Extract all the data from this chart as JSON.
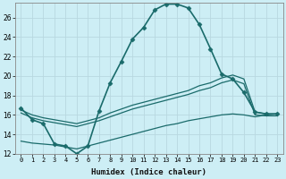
{
  "xlabel": "Humidex (Indice chaleur)",
  "background_color": "#cdeef5",
  "grid_color": "#b8d8e0",
  "line_color": "#1a6b6b",
  "xlim": [
    -0.5,
    23.5
  ],
  "ylim": [
    12,
    27.5
  ],
  "xticks": [
    0,
    1,
    2,
    3,
    4,
    5,
    6,
    7,
    8,
    9,
    10,
    11,
    12,
    13,
    14,
    15,
    16,
    17,
    18,
    19,
    20,
    21,
    22,
    23
  ],
  "yticks": [
    12,
    14,
    16,
    18,
    20,
    22,
    24,
    26
  ],
  "series": [
    {
      "x": [
        0,
        1,
        2,
        3,
        4,
        5,
        6,
        7,
        8,
        9,
        10,
        11,
        12,
        13,
        14,
        15,
        16,
        17,
        18,
        19,
        20,
        21,
        22,
        23
      ],
      "y": [
        16.7,
        15.5,
        15.1,
        13.0,
        12.8,
        12.0,
        12.8,
        16.4,
        19.3,
        21.5,
        23.8,
        25.0,
        26.8,
        27.4,
        27.4,
        27.0,
        25.3,
        22.8,
        20.2,
        19.7,
        18.3,
        16.3,
        16.1,
        16.1
      ],
      "marker": "D",
      "markersize": 2.5,
      "linewidth": 1.2
    },
    {
      "x": [
        0,
        1,
        2,
        3,
        4,
        5,
        6,
        7,
        8,
        9,
        10,
        11,
        12,
        13,
        14,
        15,
        16,
        17,
        18,
        19,
        20,
        21,
        22,
        23
      ],
      "y": [
        16.5,
        16.0,
        15.7,
        15.5,
        15.3,
        15.1,
        15.4,
        15.7,
        16.2,
        16.6,
        17.0,
        17.3,
        17.6,
        17.9,
        18.2,
        18.5,
        19.0,
        19.3,
        19.8,
        20.1,
        19.7,
        16.3,
        16.1,
        16.1
      ],
      "marker": null,
      "markersize": 0,
      "linewidth": 0.9
    },
    {
      "x": [
        0,
        1,
        2,
        3,
        4,
        5,
        6,
        7,
        8,
        9,
        10,
        11,
        12,
        13,
        14,
        15,
        16,
        17,
        18,
        19,
        20,
        21,
        22,
        23
      ],
      "y": [
        16.2,
        15.7,
        15.4,
        15.2,
        15.0,
        14.8,
        15.1,
        15.4,
        15.8,
        16.2,
        16.6,
        16.9,
        17.2,
        17.5,
        17.8,
        18.1,
        18.5,
        18.8,
        19.3,
        19.6,
        19.2,
        16.0,
        15.9,
        15.9
      ],
      "marker": null,
      "markersize": 0,
      "linewidth": 0.9
    },
    {
      "x": [
        0,
        1,
        2,
        3,
        4,
        5,
        6,
        7,
        8,
        9,
        10,
        11,
        12,
        13,
        14,
        15,
        16,
        17,
        18,
        19,
        20,
        21,
        22,
        23
      ],
      "y": [
        13.3,
        13.1,
        13.0,
        12.9,
        12.7,
        12.5,
        12.8,
        13.1,
        13.4,
        13.7,
        14.0,
        14.3,
        14.6,
        14.9,
        15.1,
        15.4,
        15.6,
        15.8,
        16.0,
        16.1,
        16.0,
        15.8,
        16.0,
        16.1
      ],
      "marker": null,
      "markersize": 0,
      "linewidth": 0.9
    }
  ]
}
